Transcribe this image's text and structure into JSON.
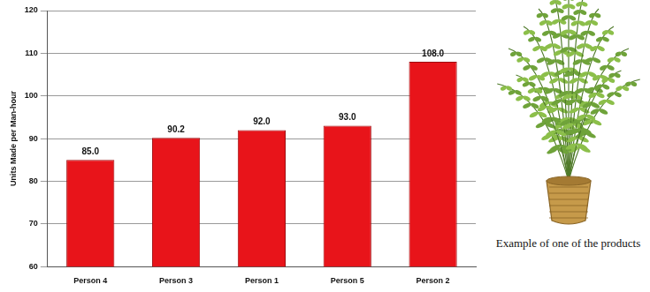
{
  "chart_data": {
    "type": "bar",
    "y_label": "Units Made per Man-hour",
    "categories": [
      "Person 4",
      "Person 3",
      "Person 1",
      "Person 5",
      "Person 2"
    ],
    "values": [
      85.0,
      90.2,
      92.0,
      93.0,
      108.0
    ],
    "value_labels": [
      "85.0",
      "90.2",
      "92.0",
      "93.0",
      "108.0"
    ],
    "data_labels": true,
    "color": "#e8141a",
    "ylim": [
      60,
      120
    ],
    "yticks": [
      60,
      70,
      80,
      90,
      100,
      110,
      120
    ],
    "grid": true,
    "annotation": "Example of one of the products"
  }
}
